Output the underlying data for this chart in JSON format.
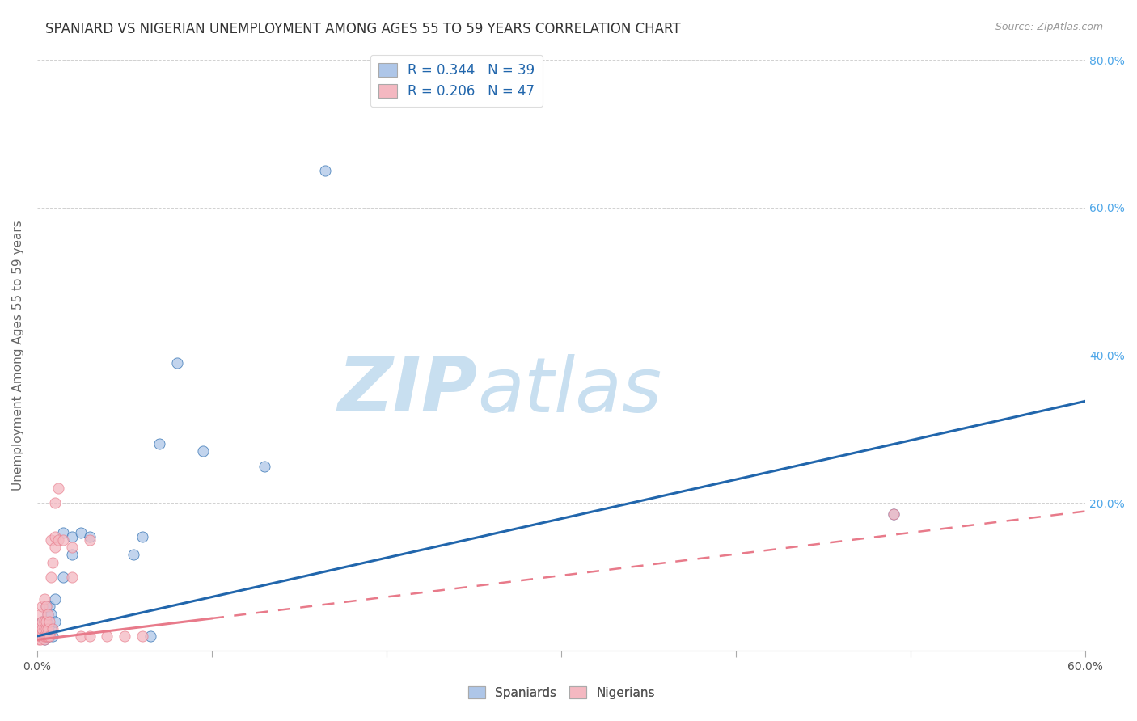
{
  "title": "SPANIARD VS NIGERIAN UNEMPLOYMENT AMONG AGES 55 TO 59 YEARS CORRELATION CHART",
  "source": "Source: ZipAtlas.com",
  "xlabel": "",
  "ylabel": "Unemployment Among Ages 55 to 59 years",
  "xlim": [
    0.0,
    0.6
  ],
  "ylim": [
    0.0,
    0.8
  ],
  "xticks": [
    0.0,
    0.1,
    0.2,
    0.3,
    0.4,
    0.5,
    0.6
  ],
  "xtick_labels": [
    "0.0%",
    "",
    "",
    "",
    "",
    "",
    "60.0%"
  ],
  "right_yticks": [
    0.2,
    0.4,
    0.6,
    0.8
  ],
  "right_ytick_labels": [
    "20.0%",
    "40.0%",
    "60.0%",
    "80.0%"
  ],
  "spaniard_R": 0.344,
  "spaniard_N": 39,
  "nigerian_R": 0.206,
  "nigerian_N": 47,
  "spaniard_color": "#aec6e8",
  "nigerian_color": "#f4b8c1",
  "spaniard_line_color": "#2166ac",
  "nigerian_line_color": "#e87a8a",
  "legend_text_color": "#2166ac",
  "watermark_zip": "ZIP",
  "watermark_atlas": "atlas",
  "watermark_color": "#c8dff0",
  "background_color": "#ffffff",
  "title_fontsize": 12,
  "label_fontsize": 11,
  "tick_fontsize": 10,
  "spaniard_line_intercept": 0.02,
  "spaniard_line_slope": 0.53,
  "nigerian_line_intercept": 0.015,
  "nigerian_line_slope": 0.29,
  "spaniard_x": [
    0.001,
    0.001,
    0.002,
    0.002,
    0.003,
    0.003,
    0.003,
    0.004,
    0.004,
    0.005,
    0.005,
    0.005,
    0.005,
    0.006,
    0.006,
    0.006,
    0.007,
    0.007,
    0.007,
    0.008,
    0.008,
    0.009,
    0.01,
    0.01,
    0.015,
    0.015,
    0.02,
    0.02,
    0.025,
    0.03,
    0.055,
    0.06,
    0.065,
    0.07,
    0.08,
    0.095,
    0.13,
    0.165,
    0.49
  ],
  "spaniard_y": [
    0.02,
    0.025,
    0.02,
    0.03,
    0.02,
    0.03,
    0.04,
    0.015,
    0.025,
    0.02,
    0.03,
    0.04,
    0.06,
    0.02,
    0.025,
    0.05,
    0.02,
    0.035,
    0.06,
    0.03,
    0.05,
    0.02,
    0.04,
    0.07,
    0.1,
    0.16,
    0.13,
    0.155,
    0.16,
    0.155,
    0.13,
    0.155,
    0.02,
    0.28,
    0.39,
    0.27,
    0.25,
    0.65,
    0.185
  ],
  "nigerian_x": [
    0.001,
    0.001,
    0.001,
    0.001,
    0.002,
    0.002,
    0.002,
    0.002,
    0.002,
    0.003,
    0.003,
    0.003,
    0.003,
    0.003,
    0.004,
    0.004,
    0.004,
    0.004,
    0.004,
    0.005,
    0.005,
    0.005,
    0.005,
    0.006,
    0.006,
    0.006,
    0.007,
    0.007,
    0.008,
    0.008,
    0.009,
    0.009,
    0.01,
    0.01,
    0.01,
    0.012,
    0.012,
    0.015,
    0.02,
    0.02,
    0.025,
    0.03,
    0.03,
    0.04,
    0.05,
    0.06,
    0.49
  ],
  "nigerian_y": [
    0.015,
    0.02,
    0.025,
    0.03,
    0.015,
    0.02,
    0.025,
    0.035,
    0.05,
    0.02,
    0.025,
    0.03,
    0.04,
    0.06,
    0.015,
    0.02,
    0.03,
    0.04,
    0.07,
    0.02,
    0.03,
    0.04,
    0.06,
    0.02,
    0.03,
    0.05,
    0.02,
    0.04,
    0.1,
    0.15,
    0.03,
    0.12,
    0.14,
    0.155,
    0.2,
    0.15,
    0.22,
    0.15,
    0.1,
    0.14,
    0.02,
    0.02,
    0.15,
    0.02,
    0.02,
    0.02,
    0.185
  ]
}
